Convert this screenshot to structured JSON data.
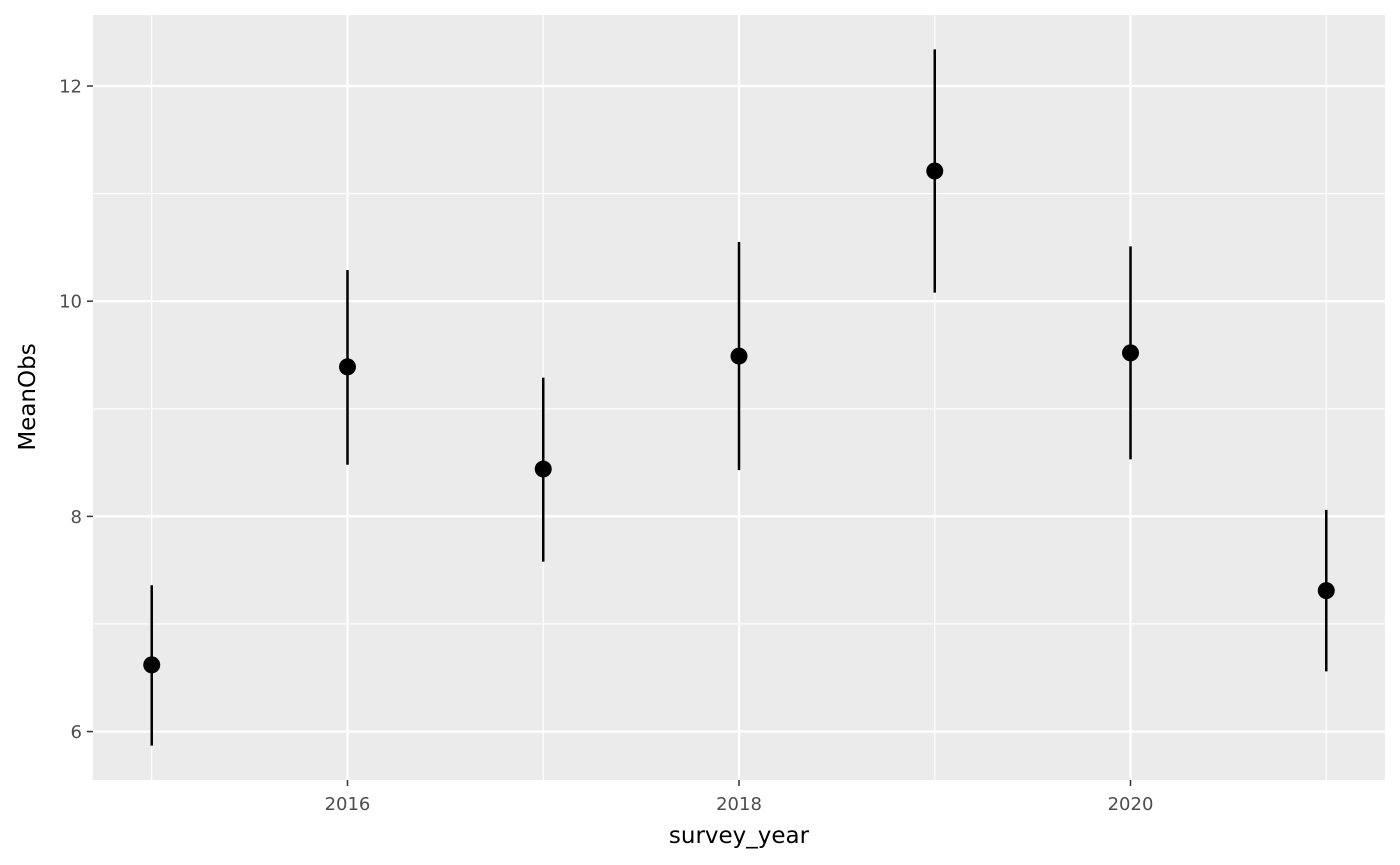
{
  "chart_data": {
    "type": "scatter",
    "subtype": "pointrange",
    "title": "",
    "xlabel": "survey_year",
    "ylabel": "MeanObs",
    "xlim": [
      2014.7,
      2021.3
    ],
    "ylim": [
      5.55,
      12.66
    ],
    "x_ticks": [
      2016,
      2018,
      2020
    ],
    "x_tick_labels": [
      "2016",
      "2018",
      "2020"
    ],
    "y_ticks": [
      6,
      8,
      10,
      12
    ],
    "y_tick_labels": [
      "6",
      "8",
      "10",
      "12"
    ],
    "grid": true,
    "legend": "none",
    "colors": {
      "panel": "#ebebeb",
      "grid": "#ffffff",
      "points": "#000000",
      "tick_text": "#4d4d4d",
      "title_text": "#000000"
    },
    "points": [
      {
        "x": 2015,
        "y": 6.62,
        "ymin": 5.87,
        "ymax": 7.36
      },
      {
        "x": 2016,
        "y": 9.39,
        "ymin": 8.48,
        "ymax": 10.29
      },
      {
        "x": 2017,
        "y": 8.44,
        "ymin": 7.58,
        "ymax": 9.29
      },
      {
        "x": 2018,
        "y": 9.49,
        "ymin": 8.43,
        "ymax": 10.55
      },
      {
        "x": 2019,
        "y": 11.21,
        "ymin": 10.08,
        "ymax": 12.34
      },
      {
        "x": 2020,
        "y": 9.52,
        "ymin": 8.53,
        "ymax": 10.51
      },
      {
        "x": 2021,
        "y": 7.31,
        "ymin": 6.56,
        "ymax": 8.06
      }
    ]
  }
}
